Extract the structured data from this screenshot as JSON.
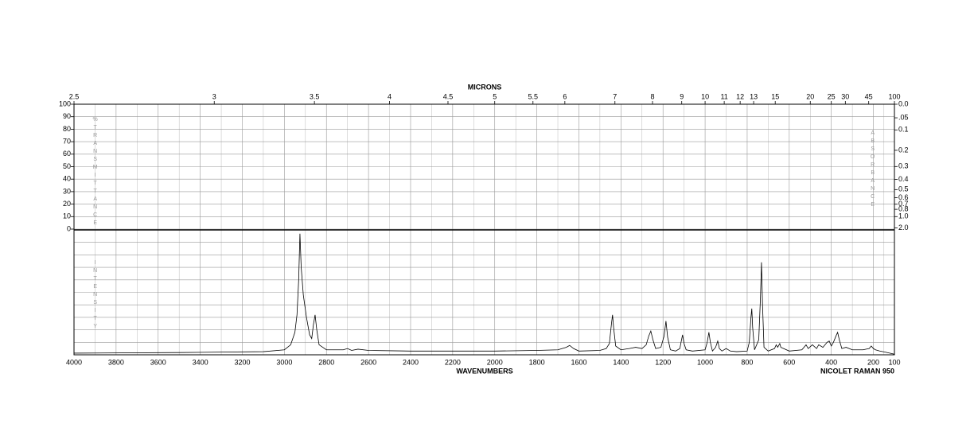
{
  "chart_data": {
    "type": "line",
    "x_label": "WAVENUMBERS",
    "x2_label": "MICRONS",
    "y_label": "%TRANSMITTANCE",
    "y2_label": "ABSORBANCE",
    "intensity_label": "INTENSITY",
    "instrument": "NICOLET RAMAN 950",
    "xlim": [
      4000,
      100
    ],
    "xticks": [
      4000,
      3800,
      3600,
      3400,
      3200,
      3000,
      2800,
      2600,
      2400,
      2200,
      2000,
      1800,
      1600,
      1400,
      1200,
      1000,
      800,
      600,
      400,
      200,
      100
    ],
    "x2ticks": [
      2.5,
      3,
      3.5,
      4,
      4.5,
      5,
      5.5,
      6,
      7,
      8,
      9,
      10,
      11,
      12,
      13,
      15,
      20,
      25,
      30,
      45,
      100
    ],
    "ylim": [
      0,
      100
    ],
    "yticks": [
      0,
      10,
      20,
      30,
      40,
      50,
      60,
      70,
      80,
      90,
      100
    ],
    "y2ticks": [
      {
        "value": 0,
        "label": "0.0"
      },
      {
        "value": 0.05,
        "label": ".05"
      },
      0.1,
      0.2,
      0.3,
      0.4,
      0.5,
      0.6,
      0.7,
      0.8,
      {
        "value": 1,
        "label": "1.0"
      },
      {
        "value": 2,
        "label": "2.0"
      }
    ],
    "intensity_lim": [
      0,
      100
    ],
    "grid": true,
    "color": "#000000",
    "x": [
      4000,
      3500,
      3100,
      3000,
      2970,
      2950,
      2940,
      2932,
      2926,
      2920,
      2910,
      2895,
      2880,
      2870,
      2862,
      2854,
      2846,
      2835,
      2800,
      2720,
      2700,
      2680,
      2650,
      2600,
      2400,
      2200,
      2000,
      1800,
      1700,
      1660,
      1644,
      1625,
      1600,
      1500,
      1470,
      1455,
      1445,
      1440,
      1435,
      1425,
      1400,
      1360,
      1330,
      1300,
      1280,
      1268,
      1258,
      1248,
      1235,
      1210,
      1195,
      1186,
      1178,
      1165,
      1140,
      1120,
      1112,
      1107,
      1100,
      1090,
      1060,
      1000,
      990,
      982,
      975,
      965,
      950,
      940,
      932,
      920,
      900,
      880,
      850,
      800,
      790,
      782,
      778,
      774,
      765,
      745,
      737,
      732,
      727,
      720,
      700,
      670,
      662,
      655,
      645,
      640,
      600,
      540,
      520,
      510,
      490,
      470,
      460,
      440,
      420,
      410,
      400,
      390,
      378,
      370,
      362,
      350,
      330,
      300,
      250,
      220,
      210,
      200,
      190,
      170,
      140,
      100
    ],
    "values": [
      1.3,
      1.8,
      2.5,
      4,
      8,
      18,
      32,
      60,
      97,
      70,
      48,
      30,
      16,
      13,
      24,
      32,
      20,
      8,
      4,
      4,
      5,
      3.5,
      4.5,
      3.5,
      3,
      3,
      3,
      3.5,
      4,
      6,
      7.5,
      5,
      3,
      3.5,
      5,
      9,
      25,
      32,
      22,
      7,
      4,
      5,
      6,
      5,
      8,
      15,
      19,
      12,
      5,
      6,
      15,
      27,
      14,
      4,
      3,
      5,
      12,
      16,
      9,
      4,
      3,
      4,
      10,
      18,
      10,
      3,
      6,
      11,
      5,
      3,
      5,
      3,
      2.5,
      3,
      10,
      30,
      37,
      22,
      4,
      12,
      45,
      74,
      40,
      6,
      3,
      5,
      8,
      6,
      9,
      6,
      3,
      4,
      8,
      5,
      8,
      5,
      8,
      6,
      10,
      11,
      7,
      10,
      15,
      18,
      12,
      5,
      6,
      4,
      4,
      5,
      7,
      5,
      4,
      3,
      2,
      0.5
    ]
  }
}
